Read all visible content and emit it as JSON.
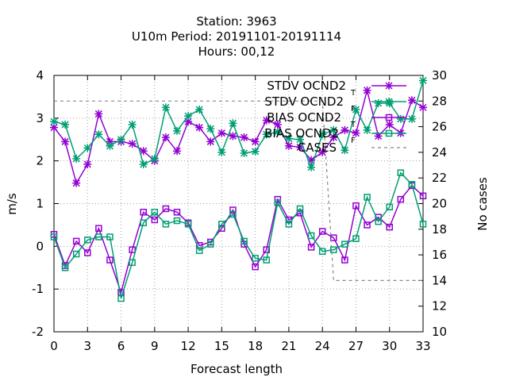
{
  "chart_data": {
    "type": "line",
    "title_lines": [
      "Station:     3963",
      "U10m   Period: 20191101-20191114",
      "Hours:  00,12"
    ],
    "xlabel": "Forecast length",
    "ylabel": "m/s",
    "y2label": "No cases",
    "xlim": [
      0,
      33
    ],
    "ylim": [
      -2,
      4
    ],
    "y2lim": [
      10,
      30
    ],
    "x_ticks": [
      "0",
      "3",
      "6",
      "9",
      "12",
      "15",
      "18",
      "21",
      "24",
      "27",
      "30",
      "33"
    ],
    "y_ticks": [
      "-2",
      "-1",
      "0",
      "1",
      "2",
      "3",
      "4"
    ],
    "y2_ticks": [
      "10",
      "12",
      "14",
      "16",
      "18",
      "20",
      "22",
      "24",
      "26",
      "28",
      "30"
    ],
    "grid": true,
    "legend_position": "top-right",
    "x": [
      0,
      1,
      2,
      3,
      4,
      5,
      6,
      7,
      8,
      9,
      10,
      11,
      12,
      13,
      14,
      15,
      16,
      17,
      18,
      19,
      20,
      21,
      22,
      23,
      24,
      25,
      26,
      27,
      28,
      29,
      30,
      31,
      32,
      33
    ],
    "series": [
      {
        "name": "STDV OCND2",
        "legend_label": "STDV OCND2",
        "legend_suffix": "T",
        "color": "#9400d3",
        "marker": "star",
        "axis": "y1",
        "values": [
          2.78,
          2.45,
          1.48,
          1.92,
          3.1,
          2.45,
          2.45,
          2.4,
          2.23,
          2.0,
          2.55,
          2.23,
          2.92,
          2.78,
          2.45,
          2.65,
          2.58,
          2.55,
          2.45,
          2.95,
          2.85,
          2.35,
          2.32,
          2.02,
          2.2,
          2.55,
          2.72,
          2.65,
          3.65,
          2.58,
          2.85,
          2.65,
          3.42,
          3.25
        ]
      },
      {
        "name": "STDV OCND2",
        "legend_label": "STDV OCND2",
        "legend_suffix": "F",
        "color": "#009e73",
        "marker": "star",
        "axis": "y1",
        "values": [
          2.92,
          2.85,
          2.05,
          2.3,
          2.62,
          2.35,
          2.5,
          2.85,
          1.92,
          2.05,
          3.25,
          2.7,
          3.05,
          3.2,
          2.75,
          2.2,
          2.88,
          2.18,
          2.22,
          2.62,
          2.68,
          2.52,
          2.5,
          1.85,
          2.62,
          2.72,
          2.25,
          3.2,
          2.72,
          3.35,
          3.35,
          2.98,
          2.98,
          3.88
        ]
      },
      {
        "name": "BIAS OCND2",
        "legend_label": "BIAS OCND2",
        "legend_suffix": "T",
        "color": "#9400d3",
        "marker": "square",
        "axis": "y1",
        "values": [
          0.28,
          -0.45,
          0.12,
          -0.15,
          0.42,
          -0.32,
          -1.08,
          -0.08,
          0.8,
          0.62,
          0.88,
          0.8,
          0.55,
          0.02,
          0.1,
          0.42,
          0.85,
          0.05,
          -0.48,
          -0.08,
          1.1,
          0.62,
          0.78,
          -0.02,
          0.35,
          0.2,
          -0.32,
          0.95,
          0.5,
          0.68,
          0.45,
          1.1,
          1.42,
          1.18
        ]
      },
      {
        "name": "BIAS OCND2",
        "legend_label": "BIAS OCND2",
        "legend_suffix": "F",
        "color": "#009e73",
        "marker": "square",
        "axis": "y1",
        "values": [
          0.22,
          -0.5,
          -0.18,
          0.15,
          0.22,
          0.22,
          -1.22,
          -0.38,
          0.55,
          0.8,
          0.52,
          0.6,
          0.52,
          -0.1,
          0.05,
          0.52,
          0.75,
          0.12,
          -0.28,
          -0.32,
          1.02,
          0.52,
          0.88,
          0.25,
          -0.12,
          -0.08,
          0.05,
          0.18,
          1.15,
          0.58,
          0.92,
          1.72,
          1.45,
          0.52
        ]
      },
      {
        "name": "CASES",
        "legend_label": "CASES",
        "legend_suffix": "",
        "color": "#888888",
        "marker": "none",
        "dashed": true,
        "axis": "y2",
        "values": [
          28,
          28,
          28,
          28,
          28,
          28,
          28,
          28,
          28,
          28,
          28,
          28,
          28,
          28,
          28,
          28,
          28,
          28,
          28,
          28,
          28,
          28,
          28,
          28,
          28,
          14,
          14,
          14,
          14,
          14,
          14,
          14,
          14,
          14
        ]
      }
    ]
  }
}
